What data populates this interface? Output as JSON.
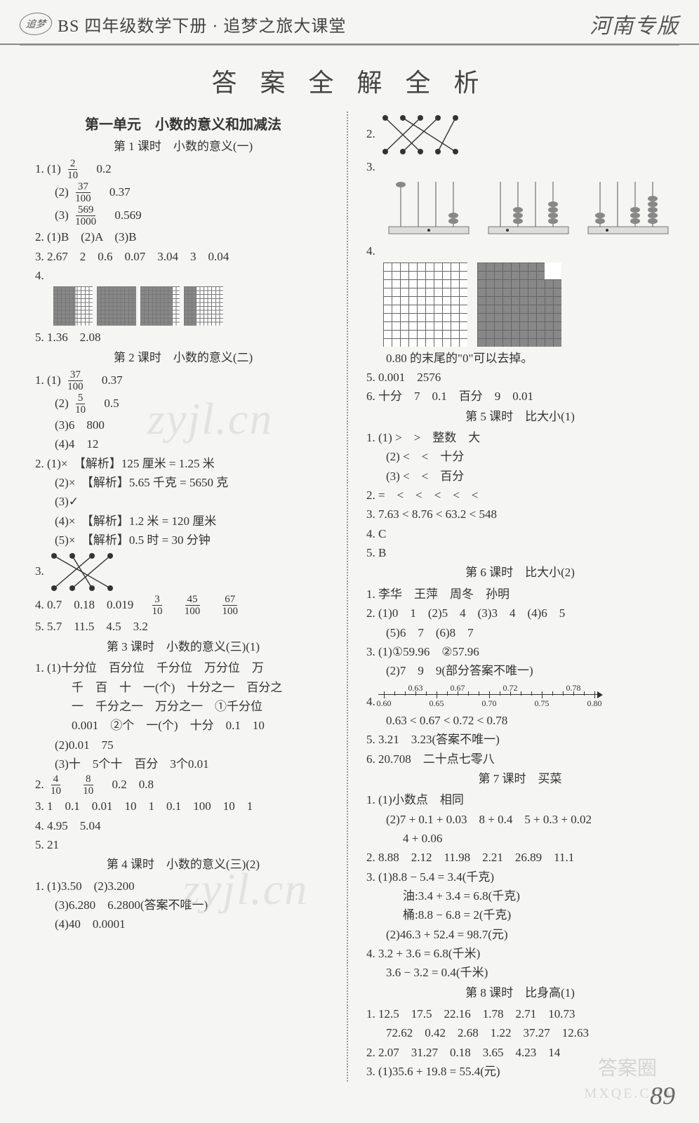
{
  "header": {
    "logo_text": "追梦",
    "title": "BS 四年级数学下册 · 追梦之旅大课堂",
    "region": "河南专版"
  },
  "page_title": "答 案 全 解 全 析",
  "page_number": "89",
  "watermarks": {
    "main": "zyjl.cn",
    "bottom1": "答案圈",
    "bottom2": "MXQE.COM"
  },
  "left": {
    "unit": "第一单元　小数的意义和加减法",
    "l1_title": "第 1 课时　小数的意义(一)",
    "l1": {
      "q1_1_frac_n": "2",
      "q1_1_frac_d": "10",
      "q1_1_b": "0.2",
      "q1_2_frac_n": "37",
      "q1_2_frac_d": "100",
      "q1_2_b": "0.37",
      "q1_3_frac_n": "569",
      "q1_3_frac_d": "1000",
      "q1_3_b": "0.569",
      "q2": "2. (1)B　(2)A　(3)B",
      "q3": "3. 2.67　2　0.6　0.07　3.04　3　0.04",
      "q4_label": "4.",
      "q4_shading": [
        56,
        100,
        80,
        30
      ],
      "q5": "5. 1.36　2.08"
    },
    "l2_title": "第 2 课时　小数的意义(二)",
    "l2": {
      "q1_1_frac_n": "37",
      "q1_1_frac_d": "100",
      "q1_1_b": "0.37",
      "q1_2_frac_n": "5",
      "q1_2_frac_d": "10",
      "q1_2_b": "0.5",
      "q1_3": "(3)6　800",
      "q1_4": "(4)4　12",
      "q2_1": "2. (1)×　【解析】125 厘米 = 1.25 米",
      "q2_2": "(2)×　【解析】5.65 千克 = 5650 克",
      "q2_3": "(3)✓",
      "q2_4": "(4)×　【解析】1.2 米 = 120 厘米",
      "q2_5": "(5)×　【解析】0.5 时 = 30 分钟",
      "q3_label": "3.",
      "q4a": "4. 0.7　0.18　0.019　",
      "q4_f1n": "3",
      "q4_f1d": "10",
      "q4_f2n": "45",
      "q4_f2d": "100",
      "q4_f3n": "67",
      "q4_f3d": "100",
      "q5": "5. 5.7　11.5　4.5　3.2"
    },
    "l3_title": "第 3 课时　小数的意义(三)(1)",
    "l3": {
      "q1_1a": "1. (1)十分位　百分位　千分位　万分位　万",
      "q1_1b": "千　百　十　一(个)　十分之一　百分之",
      "q1_1c": "一　千分之一　万分之一　①千分位",
      "q1_1d": "0.001　②个　一(个)　十分　0.1　10",
      "q1_2": "(2)0.01　75",
      "q1_3": "(3)十　5个十　百分　3个0.01",
      "q2_f1n": "4",
      "q2_f1d": "10",
      "q2_f2n": "8",
      "q2_f2d": "10",
      "q2_rest": "　0.2　0.8",
      "q3": "3. 1　0.1　0.01　10　1　0.1　100　10　1",
      "q4": "4. 4.95　5.04",
      "q5": "5. 21"
    },
    "l4_title": "第 4 课时　小数的意义(三)(2)",
    "l4": {
      "q1_1": "1. (1)3.50　(2)3.200",
      "q1_3": "(3)6.280　6.2800(答案不唯一)",
      "q1_4": "(4)40　0.0001"
    }
  },
  "right": {
    "q2_label": "2.",
    "q3_label": "3.",
    "q4_label": "4.",
    "q4_note": "0.80 的末尾的\"0\"可以去掉。",
    "q5": "5. 0.001　2576",
    "q6": "6. 十分　7　0.1　百分　9　0.01",
    "l5_title": "第 5 课时　比大小(1)",
    "l5": {
      "q1_1": "1. (1) >　>　整数　大",
      "q1_2": "(2) <　<　十分",
      "q1_3": "(3) <　<　百分",
      "q2": "2. =　<　<　<　<　<",
      "q3": "3. 7.63 < 8.76 < 63.2 < 548",
      "q4": "4. C",
      "q5": "5. B"
    },
    "l6_title": "第 6 课时　比大小(2)",
    "l6": {
      "q1": "1. 李华　王萍　周冬　孙明",
      "q2a": "2. (1)0　1　(2)5　4　(3)3　4　(4)6　5",
      "q2b": "(5)6　7　(6)8　7",
      "q3_1": "3. (1)①59.96　②57.96",
      "q3_2": "(2)7　9　9(部分答案不唯一)",
      "q4_label": "4.",
      "numline": {
        "range": [
          0.6,
          0.8
        ],
        "major_ticks": [
          0.6,
          0.65,
          0.7,
          0.75,
          0.8
        ],
        "top_labels": [
          {
            "v": 0.63,
            "t": "0.63"
          },
          {
            "v": 0.67,
            "t": "0.67"
          },
          {
            "v": 0.72,
            "t": "0.72"
          },
          {
            "v": 0.78,
            "t": "0.78"
          }
        ]
      },
      "q4_line": "0.63 < 0.67 < 0.72 < 0.78",
      "q5": "5. 3.21　3.23(答案不唯一)",
      "q6": "6. 20.708　二十点七零八"
    },
    "l7_title": "第 7 课时　买菜",
    "l7": {
      "q1_1": "1. (1)小数点　相同",
      "q1_2a": "(2)7 + 0.1 + 0.03　8 + 0.4　5 + 0.3 + 0.02",
      "q1_2b": "4 + 0.06",
      "q2": "2. 8.88　2.12　11.98　2.21　26.89　11.1",
      "q3_1": "3. (1)8.8 − 5.4 = 3.4(千克)",
      "q3_1b": "油:3.4 + 3.4 = 6.8(千克)",
      "q3_1c": "桶:8.8 − 6.8 = 2(千克)",
      "q3_2": "(2)46.3 + 52.4 = 98.7(元)",
      "q4a": "4. 3.2 + 3.6 = 6.8(千米)",
      "q4b": "3.6 − 3.2 = 0.4(千米)"
    },
    "l8_title": "第 8 课时　比身高(1)",
    "l8": {
      "q1a": "1. 12.5　17.5　22.16　1.78　2.71　10.73",
      "q1b": "72.62　0.42　2.68　1.22　37.27　12.63",
      "q2": "2. 2.07　31.27　0.18　3.65　4.23　14",
      "q3": "3. (1)35.6 + 19.8 = 55.4(元)"
    }
  },
  "colors": {
    "text": "#333333",
    "muted": "#777777",
    "grid": "#666666",
    "shade": "#888888",
    "bg": "#f5f5f3"
  }
}
